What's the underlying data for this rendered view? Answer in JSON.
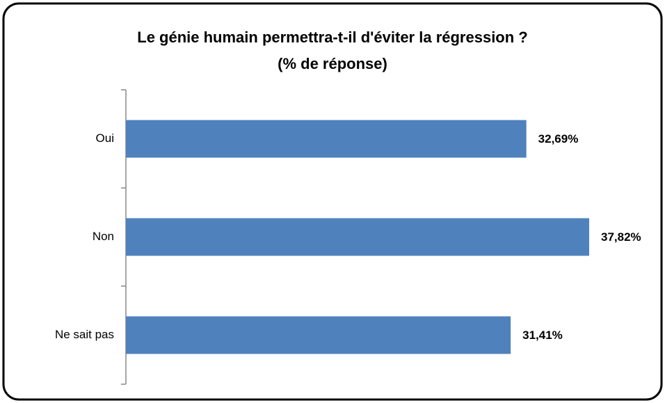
{
  "chart_data": {
    "type": "bar",
    "orientation": "horizontal",
    "title": "Le génie humain permettra-t-il d'éviter la régression ?",
    "subtitle": "(% de réponse)",
    "categories": [
      "Oui",
      "Non",
      "Ne sait pas"
    ],
    "values": [
      32.69,
      37.82,
      31.41
    ],
    "value_labels": [
      "32,69%",
      "37,82%",
      "31,41%"
    ],
    "color": "#4f81bd"
  }
}
